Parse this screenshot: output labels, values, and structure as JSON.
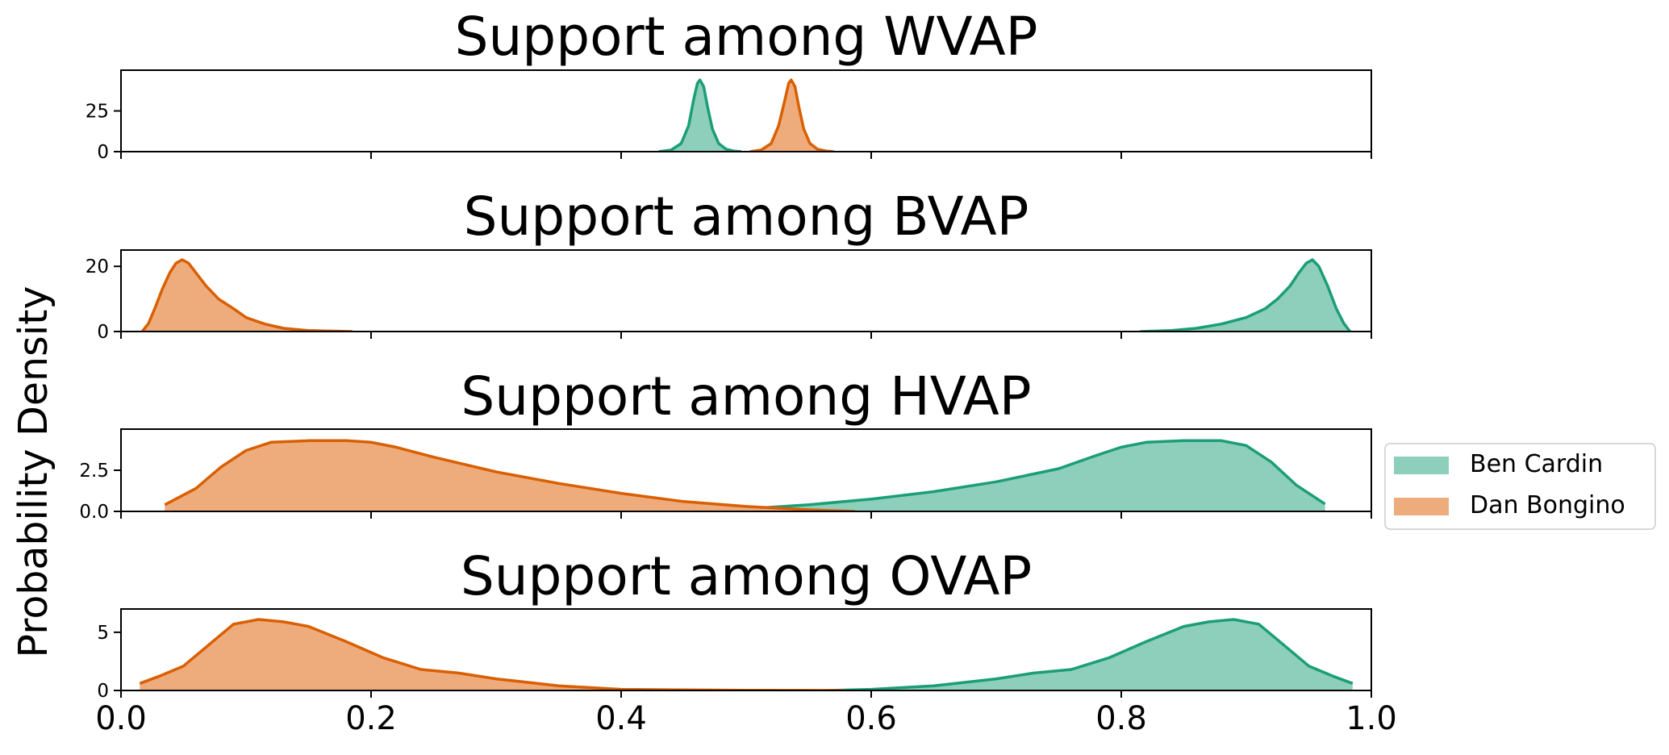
{
  "colors": {
    "ben": "#1b9e77",
    "ben_fill": "#8dcfba",
    "dan": "#d95f02",
    "dan_fill": "#eeac7d"
  },
  "ylabel": "Probability Density",
  "legend": {
    "placement": "right, beside third panel",
    "entries": [
      "Ben Cardin",
      "Dan Bongino"
    ]
  },
  "chart_data": [
    {
      "type": "area",
      "title": "Support among WVAP",
      "xlim": [
        0,
        1
      ],
      "ylim": [
        0,
        50
      ],
      "yticks": [
        0,
        25
      ],
      "ytick_labels": [
        "0",
        "25"
      ],
      "xticks": [
        0,
        0.2,
        0.4,
        0.6,
        0.8,
        1.0
      ],
      "xtick_labels": [],
      "series": [
        {
          "name": "Ben Cardin",
          "x": [
            0.43,
            0.44,
            0.448,
            0.454,
            0.458,
            0.461,
            0.463,
            0.466,
            0.469,
            0.473,
            0.478,
            0.484,
            0.49,
            0.496
          ],
          "y": [
            0,
            1,
            5,
            16,
            32,
            42,
            44,
            40,
            28,
            14,
            5,
            1.5,
            0.4,
            0
          ]
        },
        {
          "name": "Dan Bongino",
          "x": [
            0.503,
            0.512,
            0.52,
            0.526,
            0.531,
            0.534,
            0.536,
            0.539,
            0.542,
            0.546,
            0.551,
            0.557,
            0.564,
            0.57
          ],
          "y": [
            0,
            1,
            5,
            16,
            32,
            42,
            44,
            40,
            28,
            14,
            5,
            1.5,
            0.4,
            0
          ]
        }
      ]
    },
    {
      "type": "area",
      "title": "Support among BVAP",
      "xlim": [
        0,
        1
      ],
      "ylim": [
        0,
        25
      ],
      "yticks": [
        0,
        20
      ],
      "ytick_labels": [
        "0",
        "20"
      ],
      "xticks": [
        0,
        0.2,
        0.4,
        0.6,
        0.8,
        1.0
      ],
      "xtick_labels": [],
      "series": [
        {
          "name": "Ben Cardin",
          "x": [
            0.815,
            0.84,
            0.86,
            0.88,
            0.9,
            0.915,
            0.925,
            0.935,
            0.942,
            0.948,
            0.953,
            0.958,
            0.965,
            0.972,
            0.978,
            0.983
          ],
          "y": [
            0,
            0.3,
            1,
            2.3,
            4.3,
            7,
            10,
            14,
            18,
            21,
            22,
            20,
            14,
            7,
            2.5,
            0
          ]
        },
        {
          "name": "Dan Bongino",
          "x": [
            0.017,
            0.022,
            0.027,
            0.033,
            0.039,
            0.044,
            0.049,
            0.054,
            0.06,
            0.068,
            0.078,
            0.09,
            0.1,
            0.115,
            0.13,
            0.15,
            0.185
          ],
          "y": [
            0,
            2.5,
            7,
            13,
            18,
            21,
            22,
            21,
            18,
            14,
            10,
            7,
            4.3,
            2.3,
            1,
            0.3,
            0
          ]
        }
      ]
    },
    {
      "type": "area",
      "title": "Support among HVAP",
      "xlim": [
        0,
        1
      ],
      "ylim": [
        0,
        5
      ],
      "yticks": [
        0,
        2.5
      ],
      "ytick_labels": [
        "0.0",
        "2.5"
      ],
      "xticks": [
        0,
        0.2,
        0.4,
        0.6,
        0.8,
        1.0
      ],
      "xtick_labels": [],
      "series": [
        {
          "name": "Ben Cardin",
          "x": [
            0.413,
            0.45,
            0.5,
            0.55,
            0.6,
            0.65,
            0.7,
            0.75,
            0.78,
            0.8,
            0.82,
            0.85,
            0.88,
            0.9,
            0.92,
            0.94,
            0.963
          ],
          "y": [
            0,
            0.05,
            0.15,
            0.4,
            0.75,
            1.2,
            1.8,
            2.6,
            3.4,
            3.9,
            4.2,
            4.3,
            4.3,
            4.0,
            3.0,
            1.6,
            0.45
          ]
        },
        {
          "name": "Dan Bongino",
          "x": [
            0.035,
            0.06,
            0.08,
            0.1,
            0.12,
            0.15,
            0.18,
            0.2,
            0.22,
            0.25,
            0.3,
            0.35,
            0.4,
            0.45,
            0.5,
            0.55,
            0.587
          ],
          "y": [
            0.4,
            1.4,
            2.7,
            3.7,
            4.2,
            4.3,
            4.3,
            4.2,
            3.9,
            3.3,
            2.4,
            1.7,
            1.1,
            0.6,
            0.3,
            0.1,
            0
          ]
        }
      ]
    },
    {
      "type": "area",
      "title": "Support among OVAP",
      "xlim": [
        0,
        1
      ],
      "ylim": [
        0,
        7
      ],
      "yticks": [
        0,
        5
      ],
      "ytick_labels": [
        "0",
        "5"
      ],
      "xticks": [
        0,
        0.2,
        0.4,
        0.6,
        0.8,
        1.0
      ],
      "xtick_labels": [
        "0.0",
        "0.2",
        "0.4",
        "0.6",
        "0.8",
        "1.0"
      ],
      "series": [
        {
          "name": "Ben Cardin",
          "x": [
            0.565,
            0.6,
            0.65,
            0.7,
            0.73,
            0.76,
            0.79,
            0.82,
            0.85,
            0.87,
            0.89,
            0.91,
            0.93,
            0.95,
            0.97,
            0.985
          ],
          "y": [
            0,
            0.1,
            0.4,
            1.0,
            1.5,
            1.8,
            2.8,
            4.2,
            5.5,
            5.9,
            6.1,
            5.7,
            3.9,
            2.1,
            1.2,
            0.6
          ]
        },
        {
          "name": "Dan Bongino",
          "x": [
            0.015,
            0.03,
            0.05,
            0.07,
            0.09,
            0.11,
            0.13,
            0.15,
            0.18,
            0.21,
            0.24,
            0.27,
            0.3,
            0.35,
            0.4,
            0.45,
            0.5,
            0.578
          ],
          "y": [
            0.6,
            1.2,
            2.1,
            3.9,
            5.7,
            6.1,
            5.9,
            5.5,
            4.2,
            2.8,
            1.8,
            1.5,
            1.0,
            0.4,
            0.1,
            0.05,
            0.02,
            0
          ]
        }
      ]
    }
  ]
}
